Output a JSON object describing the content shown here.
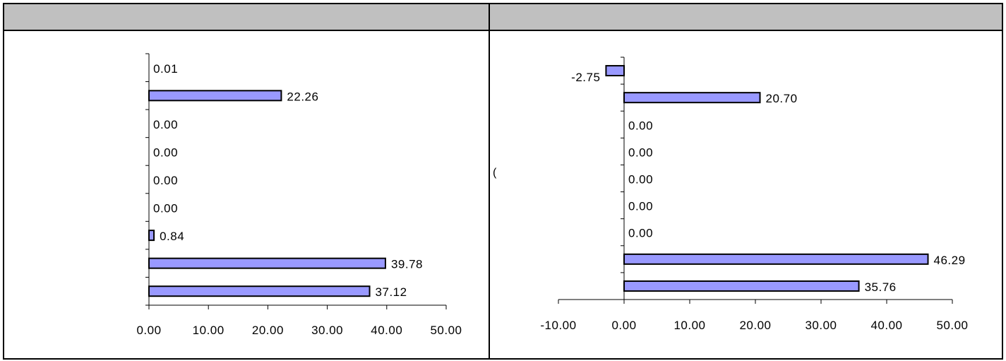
{
  "chart_data": [
    {
      "type": "bar",
      "orientation": "horizontal",
      "values": [
        0.01,
        22.26,
        0.0,
        0.0,
        0.0,
        0.0,
        0.84,
        39.78,
        37.12
      ],
      "labels": [
        "0.01",
        "22.26",
        "0.00",
        "0.00",
        "0.00",
        "0.00",
        "0.84",
        "39.78",
        "37.12"
      ],
      "xlim": [
        0,
        50
      ],
      "xticks": [
        "0.00",
        "10.00",
        "20.00",
        "30.00",
        "40.00",
        "50.00"
      ],
      "bar_color": "#9999ff",
      "grid": false,
      "legend": "none"
    },
    {
      "type": "bar",
      "orientation": "horizontal",
      "values": [
        -2.75,
        20.7,
        0.0,
        0.0,
        0.0,
        0.0,
        0.0,
        46.29,
        35.76
      ],
      "labels": [
        "-2.75",
        "20.70",
        "0.00",
        "0.00",
        "0.00",
        "0.00",
        "0.00",
        "46.29",
        "35.76"
      ],
      "xlim": [
        -10,
        50
      ],
      "xticks": [
        "-10.00",
        "0.00",
        "10.00",
        "20.00",
        "30.00",
        "40.00",
        "50.00"
      ],
      "bar_color": "#9999ff",
      "grid": false,
      "legend": "none"
    }
  ],
  "stray_glyph": "("
}
